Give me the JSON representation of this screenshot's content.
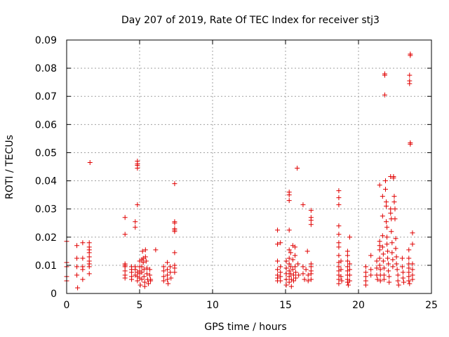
{
  "chart_data": {
    "type": "scatter",
    "title": "Day 207 of 2019, Rate Of TEC Index for receiver stj3",
    "xlabel": "GPS time / hours",
    "ylabel": "ROTI / TECUs",
    "xlim": [
      0,
      25
    ],
    "ylim": [
      0,
      0.09
    ],
    "xticks": [
      0,
      5,
      10,
      15,
      20,
      25
    ],
    "xtick_labels": [
      "0",
      "5",
      "10",
      "15",
      "20",
      "25"
    ],
    "yticks": [
      0,
      0.01,
      0.02,
      0.03,
      0.04,
      0.05,
      0.06,
      0.07,
      0.08,
      0.09
    ],
    "ytick_labels": [
      "0",
      "0.01",
      "0.02",
      "0.03",
      "0.04",
      "0.05",
      "0.06",
      "0.07",
      "0.08",
      "0.09"
    ],
    "grid": true,
    "marker": "+",
    "color": "#e00000",
    "series": [
      {
        "name": "ROTI",
        "points": [
          [
            0.0,
            0.0185
          ],
          [
            0.0,
            0.011
          ],
          [
            0.0,
            0.0095
          ],
          [
            0.0,
            0.006
          ],
          [
            0.0,
            0.0045
          ],
          [
            0.7,
            0.017
          ],
          [
            0.7,
            0.0125
          ],
          [
            0.7,
            0.0095
          ],
          [
            0.7,
            0.0065
          ],
          [
            0.75,
            0.002
          ],
          [
            1.1,
            0.018
          ],
          [
            1.1,
            0.0125
          ],
          [
            1.1,
            0.0095
          ],
          [
            1.1,
            0.0085
          ],
          [
            1.1,
            0.005
          ],
          [
            1.55,
            0.018
          ],
          [
            1.55,
            0.0165
          ],
          [
            1.55,
            0.0155
          ],
          [
            1.55,
            0.0145
          ],
          [
            1.55,
            0.013
          ],
          [
            1.55,
            0.0115
          ],
          [
            1.55,
            0.0105
          ],
          [
            1.55,
            0.0095
          ],
          [
            1.55,
            0.007
          ],
          [
            1.6,
            0.0465
          ],
          [
            4.0,
            0.027
          ],
          [
            4.0,
            0.021
          ],
          [
            4.0,
            0.0105
          ],
          [
            4.0,
            0.01
          ],
          [
            4.0,
            0.0095
          ],
          [
            4.0,
            0.008
          ],
          [
            4.0,
            0.0065
          ],
          [
            4.0,
            0.0055
          ],
          [
            4.45,
            0.0095
          ],
          [
            4.45,
            0.0085
          ],
          [
            4.45,
            0.0075
          ],
          [
            4.45,
            0.006
          ],
          [
            4.45,
            0.005
          ],
          [
            4.7,
            0.0255
          ],
          [
            4.7,
            0.0235
          ],
          [
            4.7,
            0.0095
          ],
          [
            4.7,
            0.0085
          ],
          [
            4.7,
            0.0065
          ],
          [
            4.85,
            0.047
          ],
          [
            4.85,
            0.046
          ],
          [
            4.85,
            0.0455
          ],
          [
            4.85,
            0.0445
          ],
          [
            4.85,
            0.0315
          ],
          [
            4.85,
            0.0075
          ],
          [
            4.85,
            0.006
          ],
          [
            4.85,
            0.0045
          ],
          [
            5.0,
            0.0115
          ],
          [
            5.0,
            0.0095
          ],
          [
            5.0,
            0.008
          ],
          [
            5.0,
            0.007
          ],
          [
            5.0,
            0.0055
          ],
          [
            5.05,
            0.003
          ],
          [
            5.15,
            0.012
          ],
          [
            5.15,
            0.0095
          ],
          [
            5.15,
            0.0075
          ],
          [
            5.15,
            0.005
          ],
          [
            5.2,
            0.015
          ],
          [
            5.25,
            0.0125
          ],
          [
            5.25,
            0.011
          ],
          [
            5.3,
            0.0085
          ],
          [
            5.3,
            0.006
          ],
          [
            5.35,
            0.004
          ],
          [
            5.35,
            0.0025
          ],
          [
            5.4,
            0.0155
          ],
          [
            5.4,
            0.013
          ],
          [
            5.45,
            0.0115
          ],
          [
            5.5,
            0.009
          ],
          [
            5.5,
            0.007
          ],
          [
            5.55,
            0.005
          ],
          [
            5.6,
            0.0035
          ],
          [
            5.7,
            0.0085
          ],
          [
            5.7,
            0.0065
          ],
          [
            5.75,
            0.005
          ],
          [
            5.75,
            0.0045
          ],
          [
            6.1,
            0.0155
          ],
          [
            6.65,
            0.0095
          ],
          [
            6.65,
            0.008
          ],
          [
            6.65,
            0.006
          ],
          [
            6.65,
            0.0045
          ],
          [
            6.9,
            0.011
          ],
          [
            6.9,
            0.0085
          ],
          [
            6.9,
            0.0065
          ],
          [
            6.9,
            0.005
          ],
          [
            6.95,
            0.0035
          ],
          [
            7.1,
            0.0095
          ],
          [
            7.1,
            0.0075
          ],
          [
            7.15,
            0.0055
          ],
          [
            7.4,
            0.039
          ],
          [
            7.4,
            0.0255
          ],
          [
            7.4,
            0.025
          ],
          [
            7.4,
            0.023
          ],
          [
            7.4,
            0.0225
          ],
          [
            7.4,
            0.022
          ],
          [
            7.4,
            0.0145
          ],
          [
            7.4,
            0.01
          ],
          [
            7.4,
            0.009
          ],
          [
            7.4,
            0.0075
          ],
          [
            14.45,
            0.0225
          ],
          [
            14.45,
            0.0175
          ],
          [
            14.45,
            0.0115
          ],
          [
            14.45,
            0.0085
          ],
          [
            14.45,
            0.0065
          ],
          [
            14.45,
            0.0055
          ],
          [
            14.45,
            0.0045
          ],
          [
            14.65,
            0.018
          ],
          [
            14.65,
            0.0095
          ],
          [
            14.65,
            0.0075
          ],
          [
            14.65,
            0.006
          ],
          [
            14.65,
            0.0045
          ],
          [
            15.05,
            0.0115
          ],
          [
            15.05,
            0.009
          ],
          [
            15.05,
            0.007
          ],
          [
            15.05,
            0.005
          ],
          [
            15.05,
            0.003
          ],
          [
            15.25,
            0.036
          ],
          [
            15.25,
            0.035
          ],
          [
            15.25,
            0.033
          ],
          [
            15.25,
            0.0225
          ],
          [
            15.25,
            0.0155
          ],
          [
            15.25,
            0.0125
          ],
          [
            15.25,
            0.0105
          ],
          [
            15.25,
            0.008
          ],
          [
            15.25,
            0.006
          ],
          [
            15.25,
            0.004
          ],
          [
            15.35,
            0.0145
          ],
          [
            15.35,
            0.0095
          ],
          [
            15.35,
            0.007
          ],
          [
            15.4,
            0.005
          ],
          [
            15.4,
            0.0025
          ],
          [
            15.5,
            0.017
          ],
          [
            15.5,
            0.012
          ],
          [
            15.5,
            0.0085
          ],
          [
            15.55,
            0.0065
          ],
          [
            15.55,
            0.0045
          ],
          [
            15.65,
            0.0165
          ],
          [
            15.65,
            0.0135
          ],
          [
            15.65,
            0.0095
          ],
          [
            15.7,
            0.0075
          ],
          [
            15.7,
            0.0055
          ],
          [
            15.8,
            0.0445
          ],
          [
            15.85,
            0.0105
          ],
          [
            15.9,
            0.0065
          ],
          [
            16.2,
            0.0315
          ],
          [
            16.2,
            0.0095
          ],
          [
            16.2,
            0.007
          ],
          [
            16.3,
            0.005
          ],
          [
            16.4,
            0.0085
          ],
          [
            16.5,
            0.015
          ],
          [
            16.55,
            0.0065
          ],
          [
            16.55,
            0.0045
          ],
          [
            16.75,
            0.0295
          ],
          [
            16.75,
            0.027
          ],
          [
            16.75,
            0.026
          ],
          [
            16.75,
            0.0245
          ],
          [
            16.75,
            0.0105
          ],
          [
            16.75,
            0.0095
          ],
          [
            16.75,
            0.008
          ],
          [
            16.75,
            0.007
          ],
          [
            16.75,
            0.005
          ],
          [
            18.65,
            0.0365
          ],
          [
            18.65,
            0.034
          ],
          [
            18.65,
            0.0315
          ],
          [
            18.65,
            0.024
          ],
          [
            18.65,
            0.021
          ],
          [
            18.65,
            0.018
          ],
          [
            18.65,
            0.0165
          ],
          [
            18.65,
            0.0135
          ],
          [
            18.65,
            0.011
          ],
          [
            18.65,
            0.0095
          ],
          [
            18.65,
            0.008
          ],
          [
            18.65,
            0.0065
          ],
          [
            18.65,
            0.005
          ],
          [
            18.65,
            0.0035
          ],
          [
            18.8,
            0.0115
          ],
          [
            18.8,
            0.0085
          ],
          [
            18.8,
            0.006
          ],
          [
            18.85,
            0.0045
          ],
          [
            19.25,
            0.015
          ],
          [
            19.25,
            0.0135
          ],
          [
            19.25,
            0.0115
          ],
          [
            19.25,
            0.0095
          ],
          [
            19.25,
            0.008
          ],
          [
            19.25,
            0.0065
          ],
          [
            19.25,
            0.005
          ],
          [
            19.25,
            0.004
          ],
          [
            19.3,
            0.003
          ],
          [
            19.4,
            0.02
          ],
          [
            19.4,
            0.0105
          ],
          [
            19.4,
            0.0085
          ],
          [
            19.4,
            0.0065
          ],
          [
            19.4,
            0.0045
          ],
          [
            20.5,
            0.0095
          ],
          [
            20.5,
            0.0075
          ],
          [
            20.5,
            0.006
          ],
          [
            20.5,
            0.0045
          ],
          [
            20.5,
            0.003
          ],
          [
            20.85,
            0.0135
          ],
          [
            20.85,
            0.0085
          ],
          [
            20.85,
            0.0065
          ],
          [
            21.25,
            0.0115
          ],
          [
            21.25,
            0.009
          ],
          [
            21.25,
            0.0065
          ],
          [
            21.3,
            0.005
          ],
          [
            21.45,
            0.0385
          ],
          [
            21.45,
            0.0185
          ],
          [
            21.45,
            0.017
          ],
          [
            21.45,
            0.0155
          ],
          [
            21.45,
            0.0125
          ],
          [
            21.45,
            0.01
          ],
          [
            21.5,
            0.0085
          ],
          [
            21.5,
            0.0065
          ],
          [
            21.5,
            0.0045
          ],
          [
            21.65,
            0.0345
          ],
          [
            21.65,
            0.0275
          ],
          [
            21.65,
            0.0205
          ],
          [
            21.65,
            0.0165
          ],
          [
            21.7,
            0.014
          ],
          [
            21.7,
            0.0115
          ],
          [
            21.75,
            0.009
          ],
          [
            21.75,
            0.0065
          ],
          [
            21.75,
            0.005
          ],
          [
            21.8,
            0.078
          ],
          [
            21.8,
            0.0775
          ],
          [
            21.8,
            0.0705
          ],
          [
            21.85,
            0.037
          ],
          [
            21.85,
            0.04
          ],
          [
            21.9,
            0.0325
          ],
          [
            21.9,
            0.031
          ],
          [
            21.9,
            0.0255
          ],
          [
            21.95,
            0.0235
          ],
          [
            21.95,
            0.02
          ],
          [
            21.95,
            0.0175
          ],
          [
            22.0,
            0.015
          ],
          [
            22.0,
            0.0125
          ],
          [
            22.05,
            0.0105
          ],
          [
            22.05,
            0.008
          ],
          [
            22.1,
            0.006
          ],
          [
            22.1,
            0.004
          ],
          [
            22.2,
            0.0415
          ],
          [
            22.2,
            0.03
          ],
          [
            22.2,
            0.0285
          ],
          [
            22.25,
            0.0265
          ],
          [
            22.25,
            0.022
          ],
          [
            22.3,
            0.018
          ],
          [
            22.3,
            0.0145
          ],
          [
            22.35,
            0.012
          ],
          [
            22.35,
            0.0095
          ],
          [
            22.4,
            0.0415
          ],
          [
            22.4,
            0.041
          ],
          [
            22.45,
            0.0345
          ],
          [
            22.45,
            0.0325
          ],
          [
            22.5,
            0.03
          ],
          [
            22.5,
            0.0265
          ],
          [
            22.55,
            0.0195
          ],
          [
            22.55,
            0.016
          ],
          [
            22.6,
            0.013
          ],
          [
            22.6,
            0.0105
          ],
          [
            22.65,
            0.0085
          ],
          [
            22.7,
            0.0065
          ],
          [
            22.7,
            0.0045
          ],
          [
            22.75,
            0.003
          ],
          [
            23.0,
            0.0125
          ],
          [
            23.0,
            0.0095
          ],
          [
            23.05,
            0.0075
          ],
          [
            23.05,
            0.0055
          ],
          [
            23.1,
            0.004
          ],
          [
            23.55,
            0.085
          ],
          [
            23.55,
            0.0845
          ],
          [
            23.5,
            0.0775
          ],
          [
            23.5,
            0.0755
          ],
          [
            23.5,
            0.0745
          ],
          [
            23.55,
            0.0535
          ],
          [
            23.55,
            0.053
          ],
          [
            23.45,
            0.0155
          ],
          [
            23.45,
            0.0125
          ],
          [
            23.45,
            0.0105
          ],
          [
            23.45,
            0.009
          ],
          [
            23.45,
            0.0075
          ],
          [
            23.45,
            0.006
          ],
          [
            23.45,
            0.0045
          ],
          [
            23.5,
            0.0035
          ],
          [
            23.7,
            0.0215
          ],
          [
            23.7,
            0.0175
          ],
          [
            23.7,
            0.0105
          ],
          [
            23.7,
            0.0085
          ],
          [
            23.7,
            0.0065
          ],
          [
            23.7,
            0.005
          ]
        ]
      }
    ]
  }
}
